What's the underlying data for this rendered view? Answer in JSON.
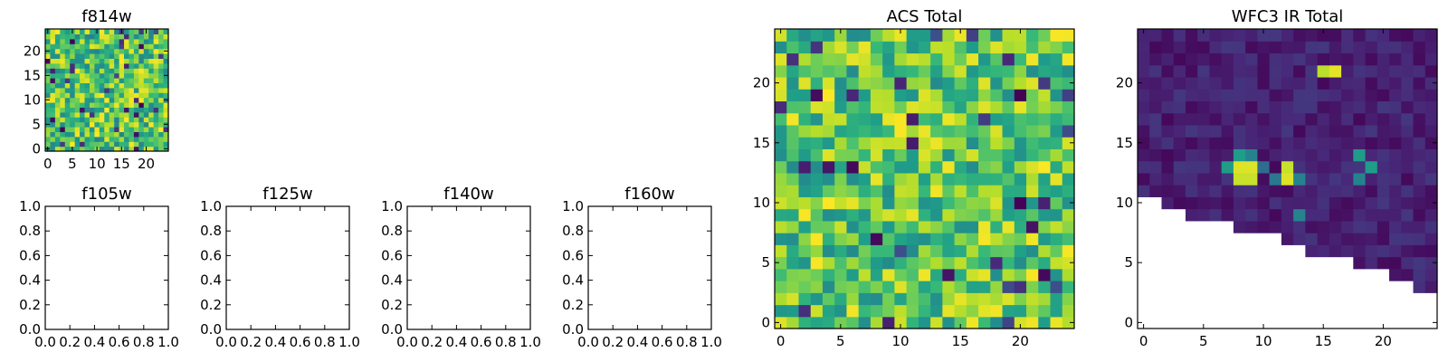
{
  "chart_data": [
    {
      "type": "heatmap",
      "title": "f814w",
      "grid_size": 25,
      "xlim": [
        -0.5,
        24.5
      ],
      "ylim": [
        -0.5,
        24.5
      ],
      "xticks": [
        "0",
        "5",
        "10",
        "15",
        "20"
      ],
      "yticks": [
        "0",
        "5",
        "10",
        "15",
        "20"
      ],
      "colormap": "viridis",
      "pattern": "noise",
      "value_range": [
        0.15,
        1.0
      ],
      "seed": 11
    },
    {
      "type": "empty",
      "title": "f105w",
      "xlim": [
        0,
        1
      ],
      "ylim": [
        0,
        1
      ],
      "xticks": [
        "0.0",
        "0.2",
        "0.4",
        "0.6",
        "0.8",
        "1.0"
      ],
      "yticks": [
        "0.0",
        "0.2",
        "0.4",
        "0.6",
        "0.8",
        "1.0"
      ]
    },
    {
      "type": "empty",
      "title": "f125w",
      "xlim": [
        0,
        1
      ],
      "ylim": [
        0,
        1
      ],
      "xticks": [
        "0.0",
        "0.2",
        "0.4",
        "0.6",
        "0.8",
        "1.0"
      ],
      "yticks": [
        "0.0",
        "0.2",
        "0.4",
        "0.6",
        "0.8",
        "1.0"
      ]
    },
    {
      "type": "empty",
      "title": "f140w",
      "xlim": [
        0,
        1
      ],
      "ylim": [
        0,
        1
      ],
      "xticks": [
        "0.0",
        "0.2",
        "0.4",
        "0.6",
        "0.8",
        "1.0"
      ],
      "yticks": [
        "0.0",
        "0.2",
        "0.4",
        "0.6",
        "0.8",
        "1.0"
      ]
    },
    {
      "type": "empty",
      "title": "f160w",
      "xlim": [
        0,
        1
      ],
      "ylim": [
        0,
        1
      ],
      "xticks": [
        "0.0",
        "0.2",
        "0.4",
        "0.6",
        "0.8",
        "1.0"
      ],
      "yticks": [
        "0.0",
        "0.2",
        "0.4",
        "0.6",
        "0.8",
        "1.0"
      ]
    },
    {
      "type": "heatmap",
      "title": "ACS Total",
      "grid_size": 25,
      "xlim": [
        -0.5,
        24.5
      ],
      "ylim": [
        -0.5,
        24.5
      ],
      "xticks": [
        "0",
        "5",
        "10",
        "15",
        "20"
      ],
      "yticks": [
        "0",
        "5",
        "10",
        "15",
        "20"
      ],
      "colormap": "viridis",
      "pattern": "noise",
      "value_range": [
        0.2,
        1.0
      ],
      "seed": 29
    },
    {
      "type": "heatmap",
      "title": "WFC3 IR Total",
      "grid_size": 25,
      "xlim": [
        -0.5,
        24.5
      ],
      "ylim": [
        -0.5,
        24.5
      ],
      "xticks": [
        "0",
        "5",
        "10",
        "15",
        "20"
      ],
      "yticks": [
        "0",
        "5",
        "10",
        "15",
        "20"
      ],
      "colormap": "viridis",
      "pattern": "masked",
      "mask_boundary": {
        "note": "cells with no data (white) lie below this row per column",
        "x": [
          0,
          1,
          2,
          3,
          4,
          5,
          6,
          7,
          8,
          9,
          10,
          11,
          12,
          13,
          14,
          15,
          16,
          17,
          18,
          19,
          20,
          21,
          22,
          23,
          24
        ],
        "min_row": [
          11,
          11,
          10,
          10,
          9,
          9,
          9,
          9,
          8,
          8,
          8,
          8,
          7,
          7,
          6,
          6,
          6,
          6,
          5,
          5,
          5,
          4,
          4,
          3,
          3
        ]
      },
      "background_range": [
        0.02,
        0.16
      ],
      "bright_cells": [
        {
          "x": 8,
          "y": 13,
          "v": 0.95
        },
        {
          "x": 9,
          "y": 13,
          "v": 0.95
        },
        {
          "x": 8,
          "y": 12,
          "v": 0.92
        },
        {
          "x": 9,
          "y": 12,
          "v": 0.92
        },
        {
          "x": 12,
          "y": 13,
          "v": 0.92
        },
        {
          "x": 12,
          "y": 12,
          "v": 0.95
        },
        {
          "x": 15,
          "y": 21,
          "v": 0.9
        },
        {
          "x": 16,
          "y": 21,
          "v": 0.96
        },
        {
          "x": 7,
          "y": 13,
          "v": 0.55
        },
        {
          "x": 8,
          "y": 14,
          "v": 0.55
        },
        {
          "x": 9,
          "y": 14,
          "v": 0.45
        },
        {
          "x": 10,
          "y": 13,
          "v": 0.35
        },
        {
          "x": 11,
          "y": 12,
          "v": 0.4
        },
        {
          "x": 13,
          "y": 12,
          "v": 0.45
        },
        {
          "x": 18,
          "y": 14,
          "v": 0.55
        },
        {
          "x": 19,
          "y": 13,
          "v": 0.55
        },
        {
          "x": 18,
          "y": 12,
          "v": 0.45
        },
        {
          "x": 13,
          "y": 9,
          "v": 0.45
        }
      ],
      "seed": 5
    }
  ]
}
